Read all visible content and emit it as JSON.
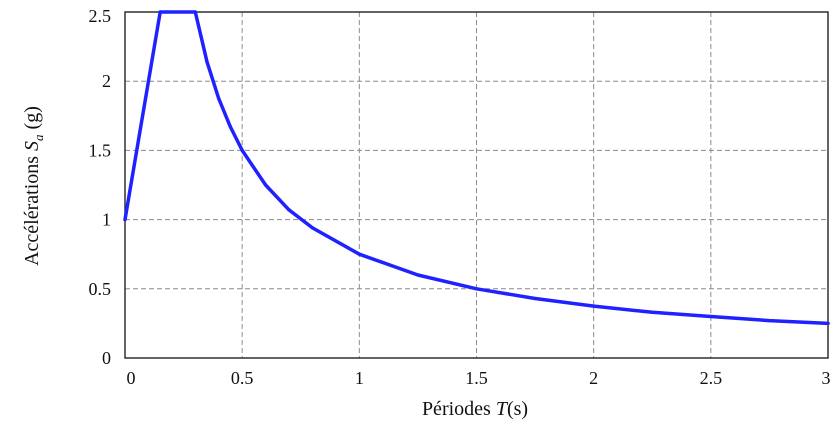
{
  "chart_data": {
    "type": "line",
    "xlabel": {
      "prefix": "Périodes ",
      "symbol": "T",
      "suffix": "(s)"
    },
    "ylabel": {
      "prefix": "Accélérations ",
      "symbol": "S",
      "subscript": "a",
      "suffix": " (g)"
    },
    "xlim": [
      0,
      3
    ],
    "ylim": [
      0,
      2.5
    ],
    "xticks": [
      "0",
      "0.5",
      "1",
      "1.5",
      "2",
      "2.5",
      "3"
    ],
    "yticks": [
      "0",
      "0.5",
      "1",
      "1.5",
      "2",
      "2.5"
    ],
    "xtick_values": [
      0,
      0.5,
      1,
      1.5,
      2,
      2.5,
      3
    ],
    "ytick_values": [
      0,
      0.5,
      1,
      1.5,
      2,
      2.5
    ],
    "grid": true,
    "line_color": "#1f22ff",
    "series": [
      {
        "x": [
          0,
          0.15,
          0.3,
          0.35,
          0.4,
          0.45,
          0.5,
          0.6,
          0.7,
          0.8,
          1.0,
          1.25,
          1.5,
          1.75,
          2.0,
          2.25,
          2.5,
          2.75,
          3.0
        ],
        "y": [
          1.0,
          2.5,
          2.5,
          2.14,
          1.875,
          1.67,
          1.5,
          1.25,
          1.07,
          0.94,
          0.75,
          0.6,
          0.5,
          0.43,
          0.375,
          0.33,
          0.3,
          0.27,
          0.25
        ]
      }
    ]
  }
}
